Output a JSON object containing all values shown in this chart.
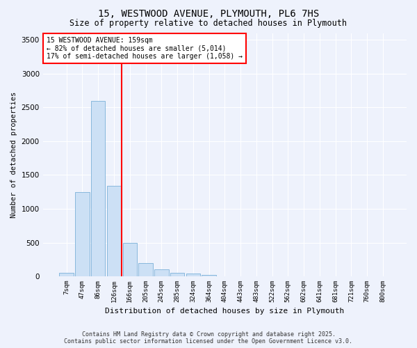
{
  "title_line1": "15, WESTWOOD AVENUE, PLYMOUTH, PL6 7HS",
  "title_line2": "Size of property relative to detached houses in Plymouth",
  "xlabel": "Distribution of detached houses by size in Plymouth",
  "ylabel": "Number of detached properties",
  "bar_color": "#cce0f5",
  "bar_edgecolor": "#7ab0d8",
  "vline_color": "red",
  "vline_x": 4,
  "annotation_title": "15 WESTWOOD AVENUE: 159sqm",
  "annotation_line2": "← 82% of detached houses are smaller (5,014)",
  "annotation_line3": "17% of semi-detached houses are larger (1,058) →",
  "annotation_box_color": "red",
  "categories": [
    "7sqm",
    "47sqm",
    "86sqm",
    "126sqm",
    "166sqm",
    "205sqm",
    "245sqm",
    "285sqm",
    "324sqm",
    "364sqm",
    "404sqm",
    "443sqm",
    "483sqm",
    "522sqm",
    "562sqm",
    "602sqm",
    "641sqm",
    "681sqm",
    "721sqm",
    "760sqm",
    "800sqm"
  ],
  "values": [
    50,
    1250,
    2600,
    1340,
    500,
    200,
    100,
    55,
    40,
    20,
    5,
    2,
    1,
    0,
    0,
    0,
    0,
    0,
    0,
    0,
    0
  ],
  "ylim": [
    0,
    3600
  ],
  "yticks": [
    0,
    500,
    1000,
    1500,
    2000,
    2500,
    3000,
    3500
  ],
  "footer_line1": "Contains HM Land Registry data © Crown copyright and database right 2025.",
  "footer_line2": "Contains public sector information licensed under the Open Government Licence v3.0.",
  "background_color": "#eef2fc",
  "plot_bg_color": "#eef2fc",
  "grid_color": "#ffffff"
}
